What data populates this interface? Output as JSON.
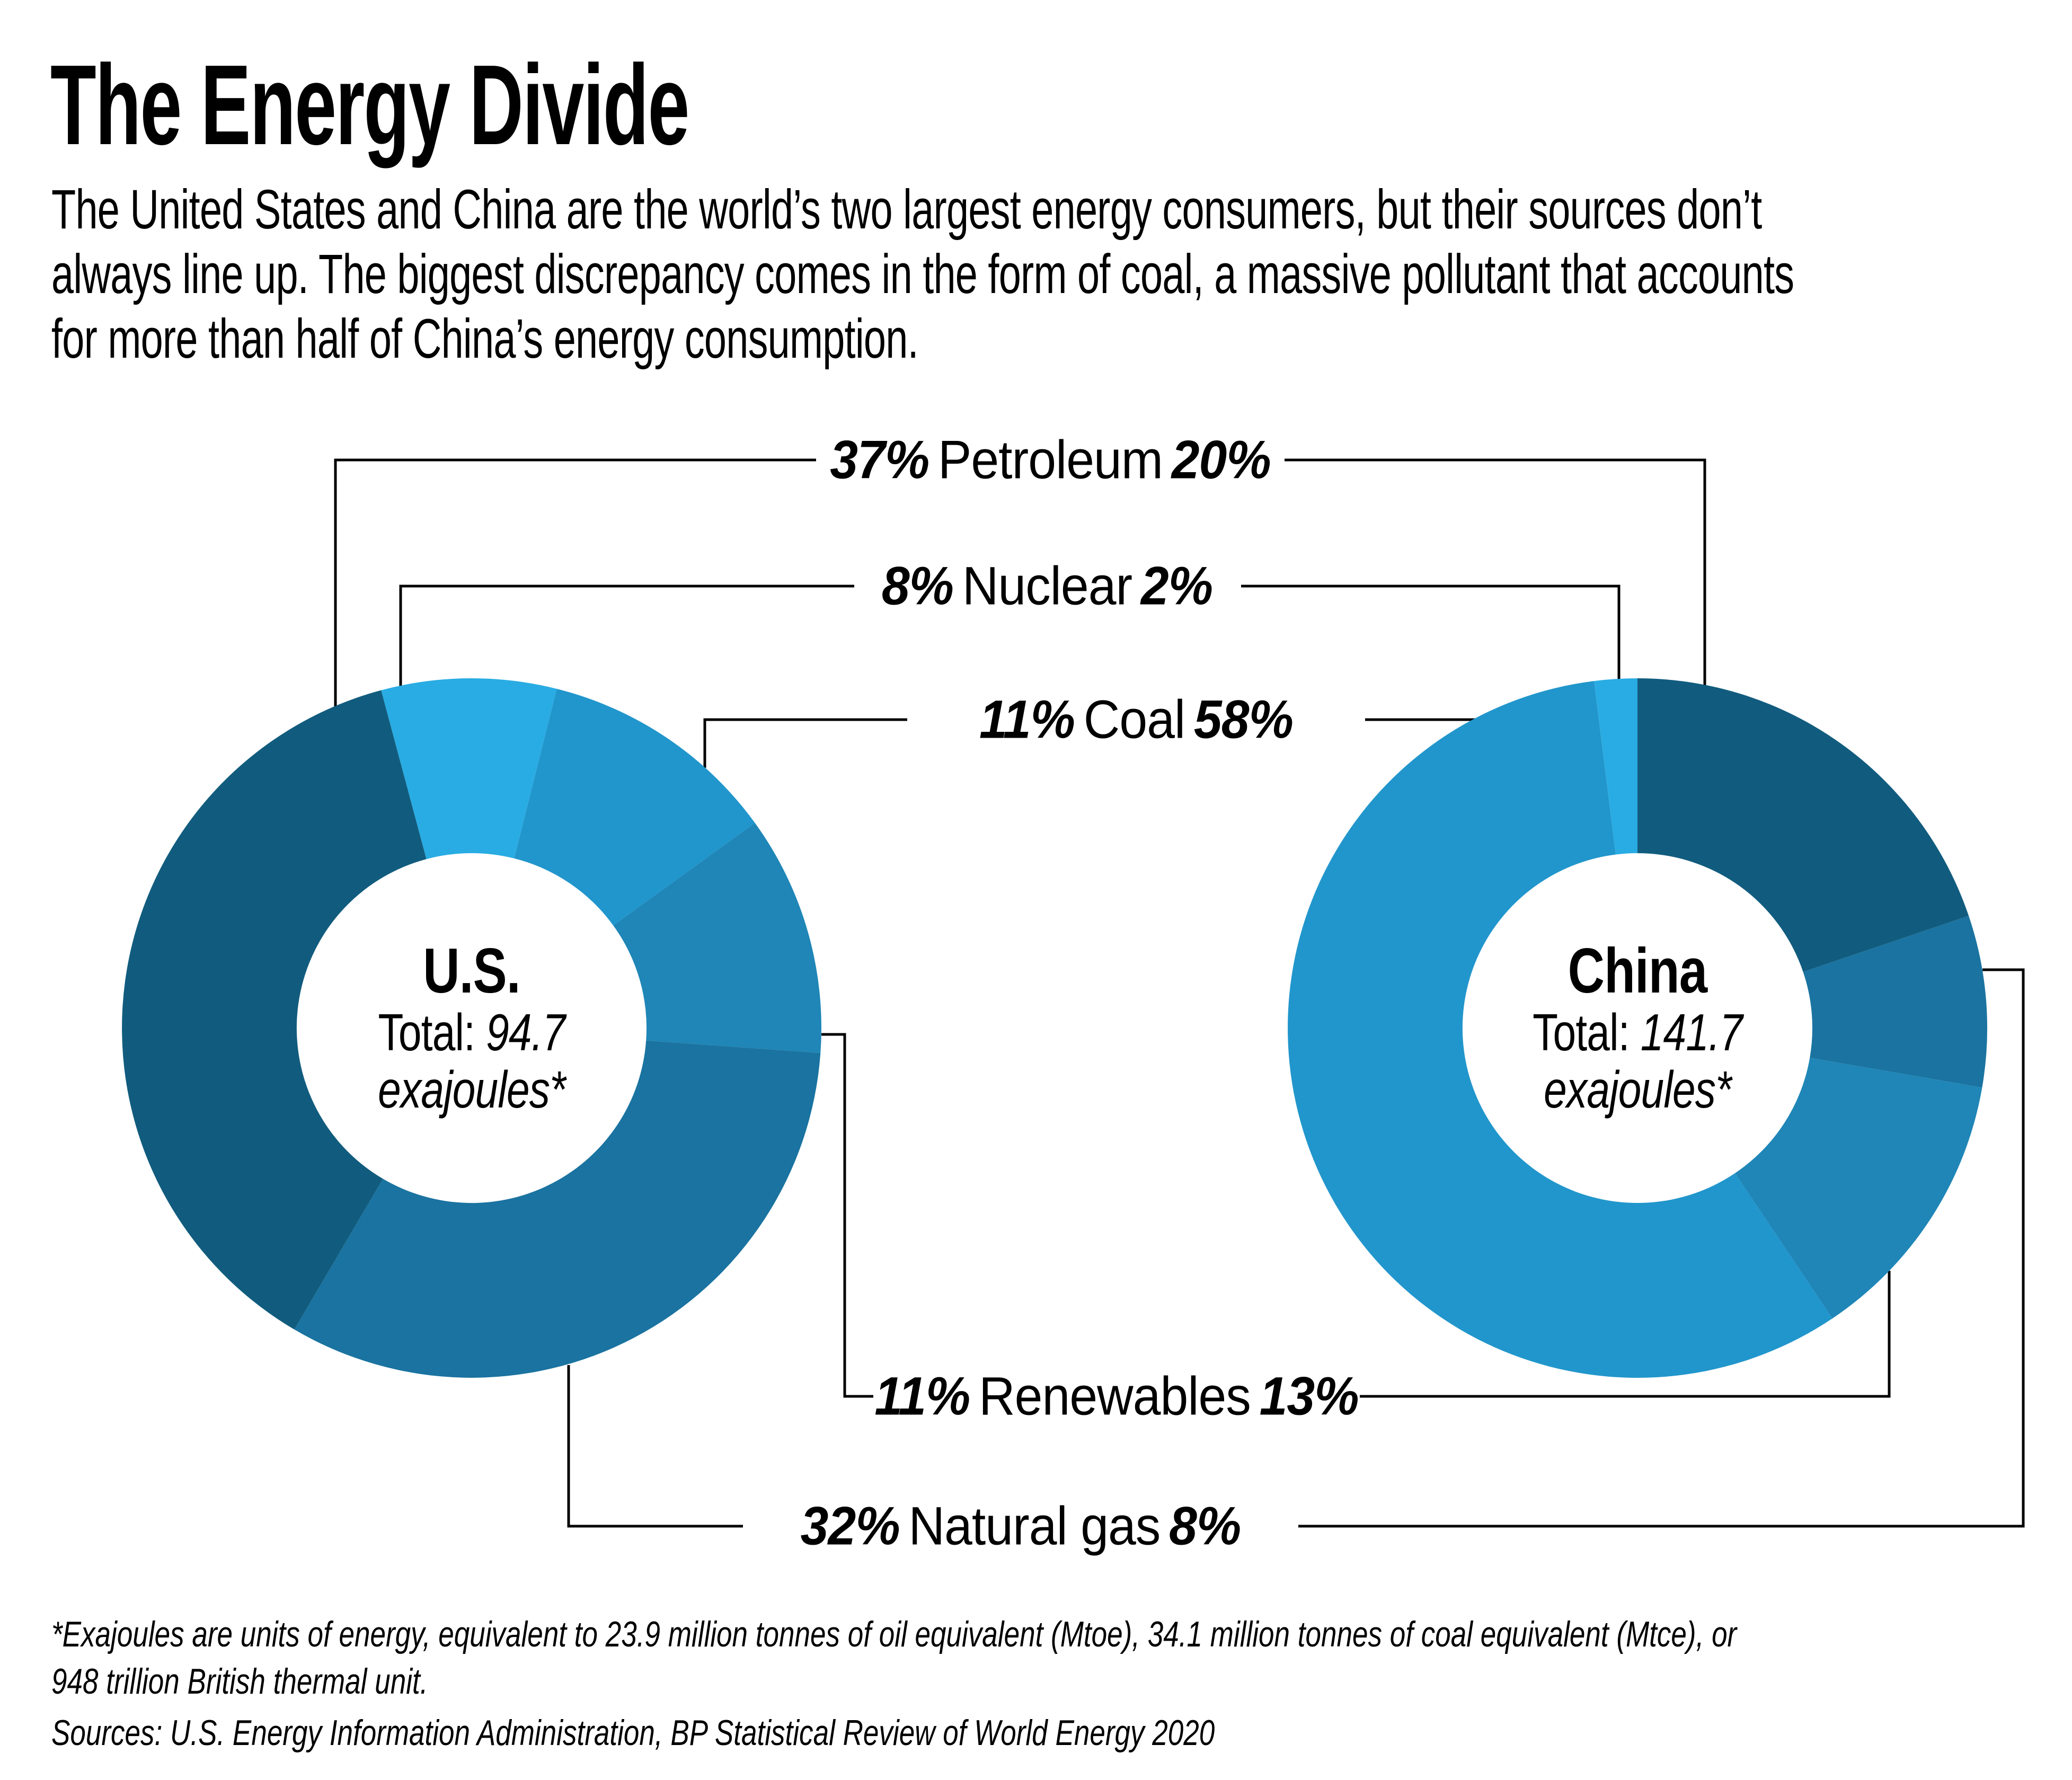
{
  "title": "The Energy Divide",
  "intro": "The United States and China are the world’s two largest energy consumers, but their sources don’t\nalways line up. The biggest discrepancy comes in the form of coal, a massive pollutant that accounts\nfor more than half of China’s energy consumption.",
  "rows": [
    {
      "id": "petroleum",
      "us_pct": "37%",
      "category": "Petroleum",
      "china_pct": "20%"
    },
    {
      "id": "nuclear",
      "us_pct": "8%",
      "category": "Nuclear",
      "china_pct": "2%"
    },
    {
      "id": "coal",
      "us_pct": "11%",
      "category": "Coal",
      "china_pct": "58%"
    },
    {
      "id": "renewables",
      "us_pct": "11%",
      "category": "Renewables",
      "china_pct": "13%"
    },
    {
      "id": "natural-gas",
      "us_pct": "32%",
      "category": "Natural gas",
      "china_pct": "8%"
    }
  ],
  "donut_labels": {
    "us": {
      "name": "U.S.",
      "total_prefix": "Total:",
      "total_value": "94.7",
      "unit": "exajoules*"
    },
    "china": {
      "name": "China",
      "total_prefix": "Total:",
      "total_value": "141.7",
      "unit": "exajoules*"
    }
  },
  "footnote": "*Exajoules are units of energy, equivalent to 23.9 million tonnes of oil equivalent (Mtoe), 34.1 million tonnes of coal equivalent (Mtce), or\n948 trillion British thermal unit.",
  "sources": "Sources: U.S. Energy Information Administration, BP Statistical Review of World Energy 2020",
  "colors": {
    "petroleum": "#115C7E",
    "natural_gas": "#1A73A0",
    "renewables": "#1F86B7",
    "coal": "#2196CC",
    "nuclear": "#29ACE3",
    "line": "#000000",
    "background": "#FFFFFF"
  },
  "chart_data": [
    {
      "id": "us",
      "type": "pie",
      "style": "donut",
      "title": "U.S.",
      "center_label": "Total: 94.7 exajoules*",
      "total_exajoules": 94.7,
      "start_angle_deg": -15,
      "clockwise": true,
      "series": [
        {
          "name": "Nuclear",
          "value": 8,
          "unit": "%",
          "color": "#29ACE3"
        },
        {
          "name": "Coal",
          "value": 11,
          "unit": "%",
          "color": "#2196CC"
        },
        {
          "name": "Renewables",
          "value": 11,
          "unit": "%",
          "color": "#1F86B7"
        },
        {
          "name": "Natural gas",
          "value": 32,
          "unit": "%",
          "color": "#1A73A0"
        },
        {
          "name": "Petroleum",
          "value": 37,
          "unit": "%",
          "color": "#115C7E"
        }
      ]
    },
    {
      "id": "china",
      "type": "pie",
      "style": "donut",
      "title": "China",
      "center_label": "Total: 141.7 exajoules*",
      "total_exajoules": 141.7,
      "start_angle_deg": 0,
      "clockwise": true,
      "series": [
        {
          "name": "Petroleum",
          "value": 20,
          "unit": "%",
          "color": "#115C7E"
        },
        {
          "name": "Natural gas",
          "value": 8,
          "unit": "%",
          "color": "#1A73A0"
        },
        {
          "name": "Renewables",
          "value": 13,
          "unit": "%",
          "color": "#1F86B7"
        },
        {
          "name": "Coal",
          "value": 58,
          "unit": "%",
          "color": "#2196CC"
        },
        {
          "name": "Nuclear",
          "value": 2,
          "unit": "%",
          "color": "#29ACE3"
        }
      ]
    }
  ]
}
